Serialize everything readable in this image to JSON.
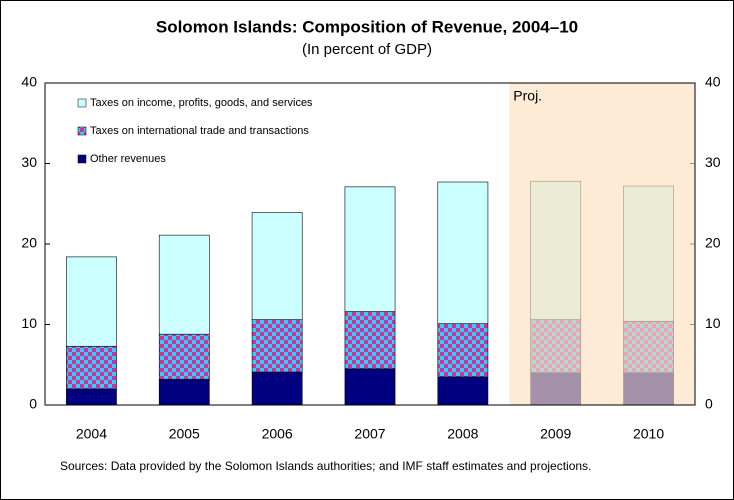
{
  "chart_data": {
    "type": "stacked_bar",
    "title": "Solomon Islands: Composition of Revenue, 2004–10",
    "subtitle": "(In percent of GDP)",
    "categories": [
      "2004",
      "2005",
      "2006",
      "2007",
      "2008",
      "2009",
      "2010"
    ],
    "series": [
      {
        "name": "Other revenues",
        "color": "#000080",
        "values": [
          2.0,
          3.2,
          4.1,
          4.5,
          3.5,
          4.0,
          4.0
        ]
      },
      {
        "name": "Taxes on international trade and transactions",
        "color": "#cc3399",
        "pattern_color": "#33ccff",
        "values": [
          5.3,
          5.6,
          6.5,
          7.1,
          6.6,
          6.6,
          6.4
        ]
      },
      {
        "name": "Taxes on income, profits, goods, and services",
        "color": "#ccffff",
        "values": [
          11.1,
          12.3,
          13.3,
          15.5,
          17.6,
          17.2,
          16.8
        ]
      }
    ],
    "ylim": [
      0,
      40
    ],
    "yticks": [
      0,
      10,
      20,
      30,
      40
    ],
    "y2lim": [
      0,
      40
    ],
    "y2ticks": [
      0,
      10,
      20,
      30,
      40
    ],
    "projection": {
      "label": "Proj.",
      "from": "2009",
      "color": "#fde0c0"
    },
    "legend": "top-left",
    "note": "Sources: Data provided by the Solomon Islands authorities; and IMF staff estimates and projections."
  }
}
